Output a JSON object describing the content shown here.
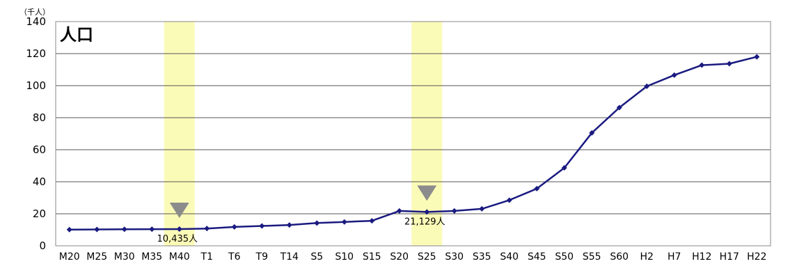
{
  "chart_data": {
    "type": "line",
    "title": "人口",
    "unit_label": "（千人）",
    "ylim": [
      0,
      140
    ],
    "yticks": [
      0,
      20,
      40,
      60,
      80,
      100,
      120,
      140
    ],
    "categories": [
      "M20",
      "M25",
      "M30",
      "M35",
      "M40",
      "T1",
      "T6",
      "T9",
      "T14",
      "S5",
      "S10",
      "S15",
      "S20",
      "S25",
      "S30",
      "S35",
      "S40",
      "S45",
      "S50",
      "S55",
      "S60",
      "H2",
      "H7",
      "H12",
      "H17",
      "H22"
    ],
    "series": [
      {
        "values": [
          10.1,
          10.2,
          10.3,
          10.4,
          10.435,
          10.8,
          11.8,
          12.4,
          13.0,
          14.2,
          14.9,
          15.6,
          21.8,
          21.129,
          21.8,
          23.1,
          28.5,
          35.7,
          48.7,
          70.5,
          86.3,
          99.6,
          106.6,
          112.8,
          113.7,
          118.0
        ],
        "color": "#1a1a80"
      }
    ],
    "highlights": [
      {
        "category": "M40",
        "label": "10,435人",
        "color": "#fbfbb8"
      },
      {
        "category": "S25",
        "label": "21,129人",
        "color": "#fbfbb8"
      }
    ],
    "grid": true,
    "legend": "none"
  }
}
